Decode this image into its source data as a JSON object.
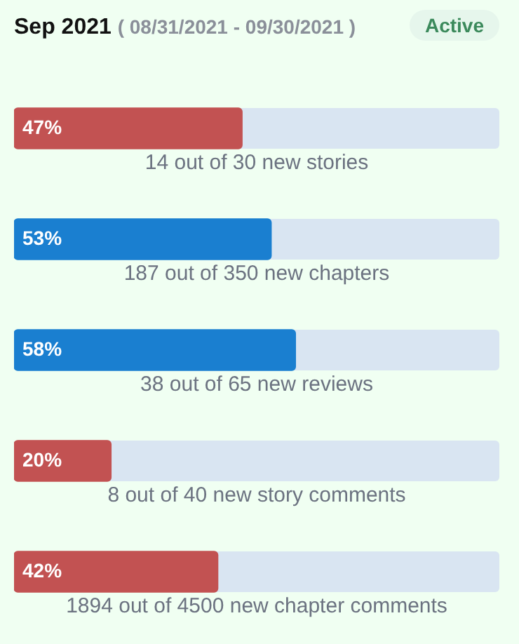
{
  "chart_data": {
    "type": "bar",
    "orientation": "horizontal",
    "title": "Sep 2021",
    "subtitle": "( 08/31/2021 - 09/30/2021 )",
    "annotations": [
      "Active"
    ],
    "categories": [
      "14 out of 30 new stories",
      "187 out of 350 new chapters",
      "38 out of 65 new reviews",
      "8 out of 40 new story comments",
      "1894 out of 4500 new chapter comments"
    ],
    "values": [
      47,
      53,
      58,
      20,
      42
    ],
    "colors": [
      "#c25252",
      "#1a7fd0",
      "#1a7fd0",
      "#c25252",
      "#c25252"
    ],
    "value_labels": [
      "47%",
      "53%",
      "58%",
      "20%",
      "42%"
    ],
    "xlim": [
      0,
      100
    ],
    "tick_labels": false,
    "legend": false
  }
}
